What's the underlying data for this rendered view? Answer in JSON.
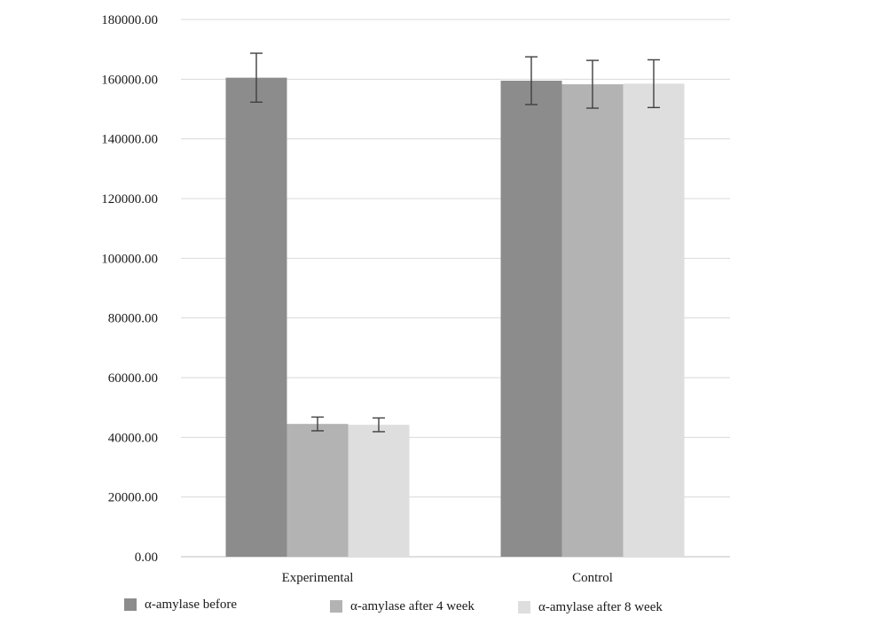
{
  "chart_data": {
    "type": "bar",
    "title": "",
    "xlabel": "",
    "ylabel": "",
    "categories": [
      "Experimental",
      "Control"
    ],
    "series": [
      {
        "name": "α-amylase before",
        "values": [
          160500,
          159500
        ],
        "errors": [
          8200,
          8000
        ],
        "color": "#8c8c8c"
      },
      {
        "name": "α-amylase after 4 week",
        "values": [
          44500,
          158300
        ],
        "errors": [
          2300,
          8000
        ],
        "color": "#b3b3b3"
      },
      {
        "name": "α-amylase after 8 week",
        "values": [
          44200,
          158500
        ],
        "errors": [
          2300,
          8000
        ],
        "color": "#dedede"
      }
    ],
    "ylim": [
      0,
      180000
    ],
    "yticks": [
      0,
      20000,
      40000,
      60000,
      80000,
      100000,
      120000,
      140000,
      160000,
      180000
    ],
    "ytick_labels": [
      "0.00",
      "20000.00",
      "40000.00",
      "60000.00",
      "80000.00",
      "100000.00",
      "120000.00",
      "140000.00",
      "160000.00",
      "180000.00"
    ],
    "grid": true,
    "legend_position": "bottom"
  }
}
